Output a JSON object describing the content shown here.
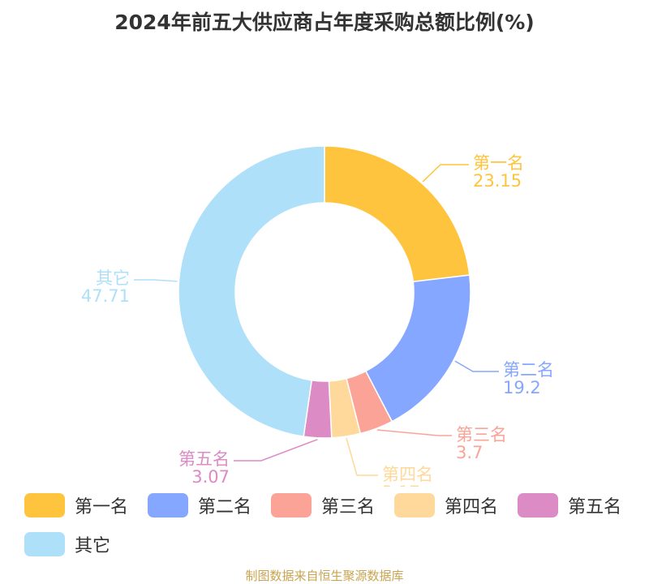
{
  "chart_data": {
    "type": "pie",
    "style": "donut",
    "title": "2024年前五大供应商占年度采购总额比例(%)",
    "categories": [
      "第一名",
      "第二名",
      "第三名",
      "第四名",
      "第五名",
      "其它"
    ],
    "values": [
      23.15,
      19.2,
      3.7,
      3.17,
      3.07,
      47.71
    ],
    "value_labels": [
      "23.15",
      "19.2",
      "3.7",
      "3.17",
      "3.07",
      "47.71"
    ],
    "colors": [
      "#ffc43d",
      "#85a7ff",
      "#fba397",
      "#ffd99b",
      "#dc8bc4",
      "#aee0fa"
    ],
    "legend_position": "bottom"
  },
  "footer": {
    "source": "制图数据来自恒生聚源数据库"
  }
}
